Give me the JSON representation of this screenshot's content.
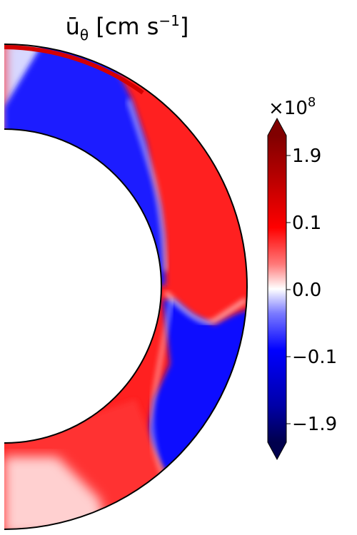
{
  "chart_data": {
    "type": "heatmap",
    "title": "ū_θ [cm s⁻¹]",
    "title_parts": {
      "symbol": "ū",
      "subscript": "θ",
      "unit": " [cm s",
      "power": "−1",
      "close": "]"
    },
    "colorbar": {
      "multiplier_base": "×10",
      "multiplier_exponent": "8",
      "ticks": [
        "1.9",
        "0.1",
        "0.0",
        "−0.1",
        "−1.9"
      ],
      "colormap": "seismic",
      "extend": "both",
      "colors": {
        "max": "#800000",
        "high": "#ff0000",
        "zero": "#ffffff",
        "low": "#0000ff",
        "min": "#00004d"
      }
    },
    "domain": {
      "geometry": "half-annulus (meridional slice)",
      "inner_radius_fraction": 0.63
    },
    "regions": [
      {
        "location": "outer band near top",
        "sign": "positive",
        "value": 0.15
      },
      {
        "location": "inner band near top",
        "sign": "negative",
        "value": -0.1
      },
      {
        "location": "upper-middle outer band",
        "sign": "positive",
        "value": 0.12
      },
      {
        "location": "lower-middle outer band",
        "sign": "negative",
        "value": -0.11
      },
      {
        "location": "lower inner band",
        "sign": "positive",
        "value": 0.1
      },
      {
        "location": "bottom pole",
        "sign": "positive",
        "value": 0.03
      },
      {
        "location": "top pole",
        "sign": "negative",
        "value": -0.03
      }
    ]
  }
}
